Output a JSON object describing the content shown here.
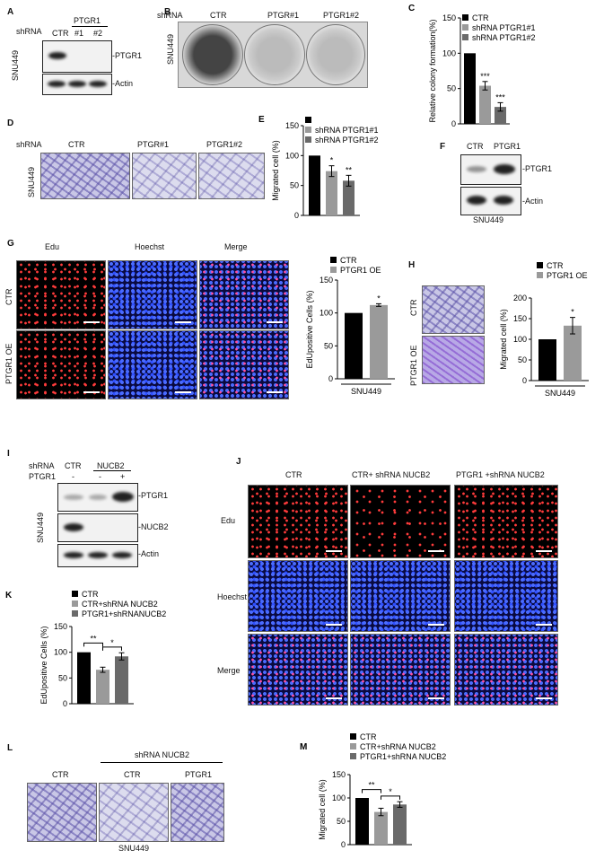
{
  "panelA": {
    "label": "A",
    "shrna": "shRNA",
    "lane1": "CTR",
    "group": "PTGR1",
    "lane2": "#1",
    "lane3": "#2",
    "cell": "SNU449",
    "band1": "-PTGR1",
    "band2": "-Actin"
  },
  "panelB": {
    "label": "B",
    "shrna": "shRNA",
    "ctr": "CTR",
    "g1": "PTGR#1",
    "g2": "PTGR1#2",
    "cell": "SNU449"
  },
  "panelD": {
    "label": "D",
    "shrna": "shRNA",
    "ctr": "CTR",
    "g1": "PTGR#1",
    "g2": "PTGR1#2",
    "cell": "SNU449"
  },
  "panelF": {
    "label": "F",
    "ctr": "CTR",
    "oe": "PTGR1",
    "band1": "-PTGR1",
    "band2": "-Actin",
    "cell": "SNU449"
  },
  "panelG": {
    "label": "G",
    "c1": "Edu",
    "c2": "Hoechst",
    "c3": "Merge",
    "r1": "CTR",
    "r2": "PTGR1 OE"
  },
  "panelH": {
    "label": "H",
    "r1": "CTR",
    "r2": "PTGR1 OE"
  },
  "panelI": {
    "label": "I",
    "shrna": "shRNA",
    "ctr": "CTR",
    "kd": "NUCB2",
    "ptgr1": "PTGR1",
    "m1": "-",
    "m2": "-",
    "p3": "+",
    "cell": "SNU449",
    "band1": "-PTGR1",
    "band2": "-NUCB2",
    "band3": "-Actin"
  },
  "panelJ": {
    "label": "J",
    "c1": "CTR",
    "c2": "CTR+ shRNA NUCB2",
    "c3": "PTGR1 +shRNA NUCB2",
    "r1": "Edu",
    "r2": "Hoechst",
    "r3": "Merge"
  },
  "panelL": {
    "label": "L",
    "ctr": "CTR",
    "group": "shRNA NUCB2",
    "g1": "CTR",
    "g2": "PTGR1",
    "cell": "SNU449"
  },
  "chart_data": [
    {
      "id": "C",
      "type": "bar",
      "ylabel": "Relative colony formation(%)",
      "ylim": [
        0,
        150
      ],
      "ticks": [
        "0",
        "50",
        "100",
        "150"
      ],
      "series": [
        {
          "name": "CTR",
          "values": [
            100
          ],
          "color": "#000000"
        },
        {
          "name": "shRNA PTGR1#1",
          "values": [
            54
          ],
          "color": "#9a9a9a"
        },
        {
          "name": "shRNA PTGR1#2",
          "values": [
            24
          ],
          "color": "#6a6a6a"
        }
      ],
      "errors": [
        0,
        6,
        6
      ],
      "sig": [
        "",
        "***",
        "***"
      ]
    },
    {
      "id": "E",
      "type": "bar",
      "ylabel": "Migrated cell (%)",
      "ylim": [
        0,
        150
      ],
      "ticks": [
        "0",
        "50",
        "100",
        "150"
      ],
      "series": [
        {
          "name": "",
          "values": [
            100
          ],
          "color": "#000000"
        },
        {
          "name": "shRNA PTGR1#1",
          "values": [
            74
          ],
          "color": "#9a9a9a"
        },
        {
          "name": "shRNA PTGR1#2",
          "values": [
            58
          ],
          "color": "#6a6a6a"
        }
      ],
      "errors": [
        0,
        9,
        9
      ],
      "sig": [
        "",
        "*",
        "**"
      ]
    },
    {
      "id": "G",
      "type": "bar",
      "ylabel": "EdUpositive Cells (%)",
      "xlabel": "SNU449",
      "ylim": [
        0,
        150
      ],
      "ticks": [
        "0",
        "50",
        "100",
        "150"
      ],
      "series": [
        {
          "name": "CTR",
          "values": [
            100
          ],
          "color": "#000000"
        },
        {
          "name": "PTGR1 OE",
          "values": [
            112
          ],
          "color": "#9a9a9a"
        }
      ],
      "errors": [
        0,
        2
      ],
      "sig": [
        "",
        "*"
      ]
    },
    {
      "id": "H",
      "type": "bar",
      "ylabel": "Migrated cell (%)",
      "xlabel": "SNU449",
      "ylim": [
        0,
        200
      ],
      "ticks": [
        "0",
        "50",
        "100",
        "150",
        "200"
      ],
      "series": [
        {
          "name": "CTR",
          "values": [
            100
          ],
          "color": "#000000"
        },
        {
          "name": "PTGR1 OE",
          "values": [
            133
          ],
          "color": "#9a9a9a"
        }
      ],
      "errors": [
        0,
        20
      ],
      "sig": [
        "",
        "*"
      ]
    },
    {
      "id": "K",
      "type": "bar",
      "ylabel": "EdUpositive Cells (%)",
      "ylim": [
        0,
        150
      ],
      "ticks": [
        "0",
        "50",
        "100",
        "150"
      ],
      "series": [
        {
          "name": "CTR",
          "values": [
            100
          ],
          "color": "#000000"
        },
        {
          "name": "CTR+shRNA NUCB2",
          "values": [
            66
          ],
          "color": "#9a9a9a"
        },
        {
          "name": "PTGR1+shRNANUCB2",
          "values": [
            92
          ],
          "color": "#6a6a6a"
        }
      ],
      "errors": [
        0,
        5,
        7
      ],
      "brackets": [
        {
          "from": 0,
          "to": 1,
          "label": "**"
        },
        {
          "from": 1,
          "to": 2,
          "label": "*"
        }
      ]
    },
    {
      "id": "M",
      "type": "bar",
      "ylabel": "Migrated cell (%)",
      "ylim": [
        0,
        150
      ],
      "ticks": [
        "0",
        "50",
        "100",
        "150"
      ],
      "series": [
        {
          "name": "CTR",
          "values": [
            100
          ],
          "color": "#000000"
        },
        {
          "name": "CTR+shRNA NUCB2",
          "values": [
            70
          ],
          "color": "#9a9a9a"
        },
        {
          "name": "PTGR1+shRNA NUCB2",
          "values": [
            86
          ],
          "color": "#6a6a6a"
        }
      ],
      "errors": [
        0,
        8,
        6
      ],
      "brackets": [
        {
          "from": 0,
          "to": 1,
          "label": "**"
        },
        {
          "from": 1,
          "to": 2,
          "label": "*"
        }
      ]
    }
  ]
}
